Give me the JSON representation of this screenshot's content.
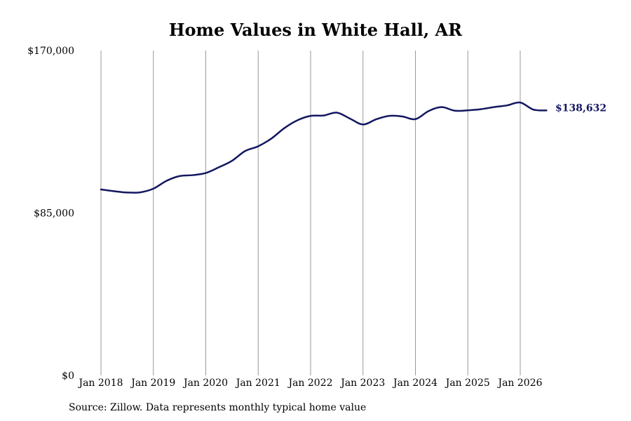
{
  "chart": {
    "title": "Home Values in White Hall, AR",
    "source": "Source: Zillow. Data represents monthly typical home value"
  },
  "colors": {
    "line": "#141760",
    "grid": "#999999"
  },
  "chart_data": {
    "type": "line",
    "title": "Home Values in White Hall, AR",
    "xlabel": "",
    "ylabel": "",
    "ylim": [
      0,
      170000
    ],
    "xlim": [
      "2018-01",
      "2026-08"
    ],
    "y_ticks": [
      0,
      85000,
      170000
    ],
    "y_tick_labels": [
      "$0",
      "$85,000",
      "$170,000"
    ],
    "x_ticks": [
      "2018-01",
      "2019-01",
      "2020-01",
      "2021-01",
      "2022-01",
      "2023-01",
      "2024-01",
      "2025-01",
      "2026-01"
    ],
    "x_tick_labels": [
      "Jan 2018",
      "Jan 2019",
      "Jan 2020",
      "Jan 2021",
      "Jan 2022",
      "Jan 2023",
      "Jan 2024",
      "Jan 2025",
      "Jan 2026"
    ],
    "grid": "vertical",
    "end_label": "$138,632",
    "series": [
      {
        "points": [
          [
            "2018-01",
            97300
          ],
          [
            "2018-04",
            96400
          ],
          [
            "2018-07",
            95700
          ],
          [
            "2018-10",
            95800
          ],
          [
            "2019-01",
            97700
          ],
          [
            "2019-04",
            101800
          ],
          [
            "2019-07",
            104300
          ],
          [
            "2019-10",
            104800
          ],
          [
            "2020-01",
            105900
          ],
          [
            "2020-04",
            108900
          ],
          [
            "2020-07",
            112300
          ],
          [
            "2020-10",
            117400
          ],
          [
            "2021-01",
            119900
          ],
          [
            "2021-04",
            123900
          ],
          [
            "2021-07",
            129400
          ],
          [
            "2021-10",
            133500
          ],
          [
            "2022-01",
            135800
          ],
          [
            "2022-04",
            136000
          ],
          [
            "2022-07",
            137500
          ],
          [
            "2022-10",
            134400
          ],
          [
            "2023-01",
            131300
          ],
          [
            "2023-04",
            134000
          ],
          [
            "2023-07",
            135800
          ],
          [
            "2023-10",
            135500
          ],
          [
            "2024-01",
            134100
          ],
          [
            "2024-04",
            138300
          ],
          [
            "2024-07",
            140400
          ],
          [
            "2024-10",
            138500
          ],
          [
            "2025-01",
            138700
          ],
          [
            "2025-04",
            139300
          ],
          [
            "2025-07",
            140400
          ],
          [
            "2025-10",
            141300
          ],
          [
            "2026-01",
            142800
          ],
          [
            "2026-04",
            139100
          ],
          [
            "2026-07",
            138632
          ]
        ]
      }
    ]
  }
}
